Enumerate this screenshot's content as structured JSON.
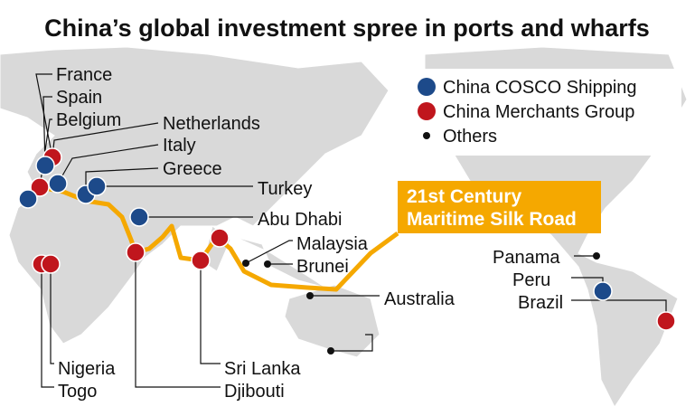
{
  "title": "China’s global investment spree in ports and wharfs",
  "legend": [
    {
      "label": "China COSCO Shipping",
      "color": "#1d4a8a"
    },
    {
      "label": "China Merchants Group",
      "color": "#c0161d"
    },
    {
      "label": "Others",
      "color": "#111111"
    }
  ],
  "route_label": [
    "21st Century",
    "Maritime Silk Road"
  ],
  "route_color": "#f5a800",
  "labels": [
    "France",
    "Spain",
    "Belgium",
    "Netherlands",
    "Italy",
    "Greece",
    "Turkey",
    "Abu Dhabi",
    "Malaysia",
    "Brunei",
    "Australia",
    "Panama",
    "Peru",
    "Brazil",
    "Nigeria",
    "Togo",
    "Sri Lanka",
    "Djibouti"
  ],
  "ports": [
    1,
    0,
    1,
    0,
    0,
    0,
    0,
    0,
    1,
    1,
    1,
    1,
    2,
    2,
    2,
    1,
    2,
    2,
    0,
    1
  ]
}
